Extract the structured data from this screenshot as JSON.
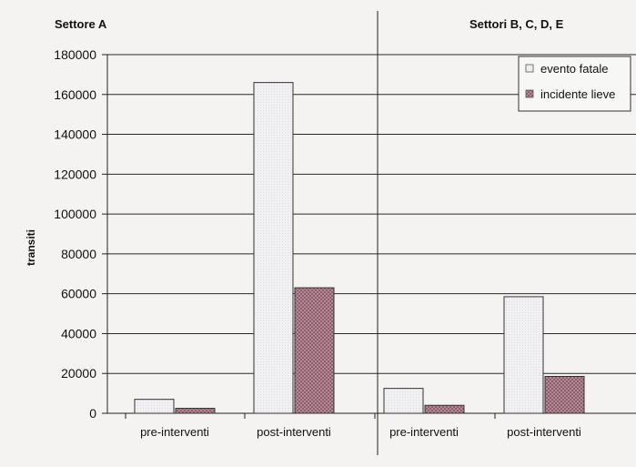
{
  "chart_data": {
    "type": "bar",
    "panels": [
      {
        "title": "Settore A",
        "categories": [
          "pre-interventi",
          "post-interventi"
        ],
        "series": [
          {
            "name": "evento fatale",
            "values": [
              7000,
              166000
            ]
          },
          {
            "name": "incidente lieve",
            "values": [
              2500,
              63000
            ]
          }
        ]
      },
      {
        "title": "Settori B, C, D, E",
        "categories": [
          "pre-interventi",
          "post-interventi"
        ],
        "series": [
          {
            "name": "evento fatale",
            "values": [
              12500,
              58500
            ]
          },
          {
            "name": "incidente lieve",
            "values": [
              4000,
              18500
            ]
          }
        ]
      }
    ],
    "ylabel": "transiti",
    "ylim": [
      0,
      180000
    ],
    "yticks": [
      "0",
      "20000",
      "40000",
      "60000",
      "80000",
      "100000",
      "120000",
      "140000",
      "160000",
      "180000"
    ],
    "grid": true,
    "legend_position": "top-right",
    "colors": {
      "background": "#f4f3f1",
      "evento_fatale": "#eeeef2",
      "incidente_lieve": "#a87f8b",
      "axis": "#222222"
    }
  }
}
